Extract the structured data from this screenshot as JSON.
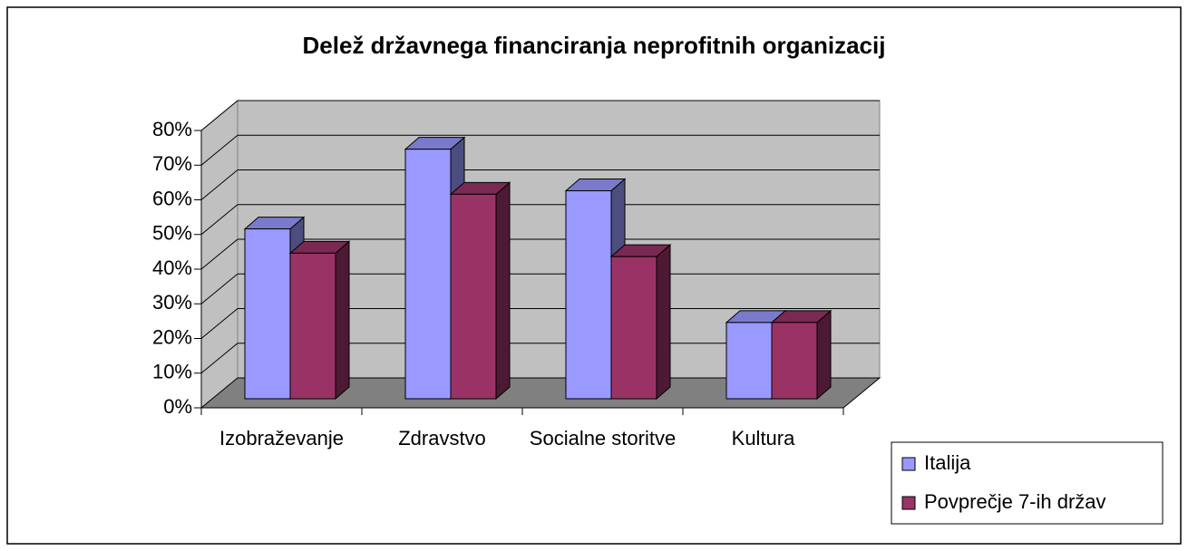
{
  "chart_data": {
    "type": "bar3d",
    "title": "Delež državnega financiranja neprofitnih organizacij",
    "categories": [
      "Izobraževanje",
      "Zdravstvo",
      "Socialne storitve",
      "Kultura"
    ],
    "series": [
      {
        "name": "Italija",
        "color": "#9999ff",
        "values": [
          49,
          72,
          60,
          22
        ]
      },
      {
        "name": "Povprečje 7-ih držav",
        "color": "#993366",
        "values": [
          42,
          59,
          41,
          22
        ]
      }
    ],
    "ylim": [
      0,
      80
    ],
    "yticks": [
      {
        "value": 0,
        "label": "0%"
      },
      {
        "value": 10,
        "label": "10%"
      },
      {
        "value": 20,
        "label": "20%"
      },
      {
        "value": 30,
        "label": "30%"
      },
      {
        "value": 40,
        "label": "40%"
      },
      {
        "value": 50,
        "label": "50%"
      },
      {
        "value": 60,
        "label": "60%"
      },
      {
        "value": 70,
        "label": "70%"
      },
      {
        "value": 80,
        "label": "80%"
      }
    ],
    "grid": true,
    "legend": "lower right"
  }
}
